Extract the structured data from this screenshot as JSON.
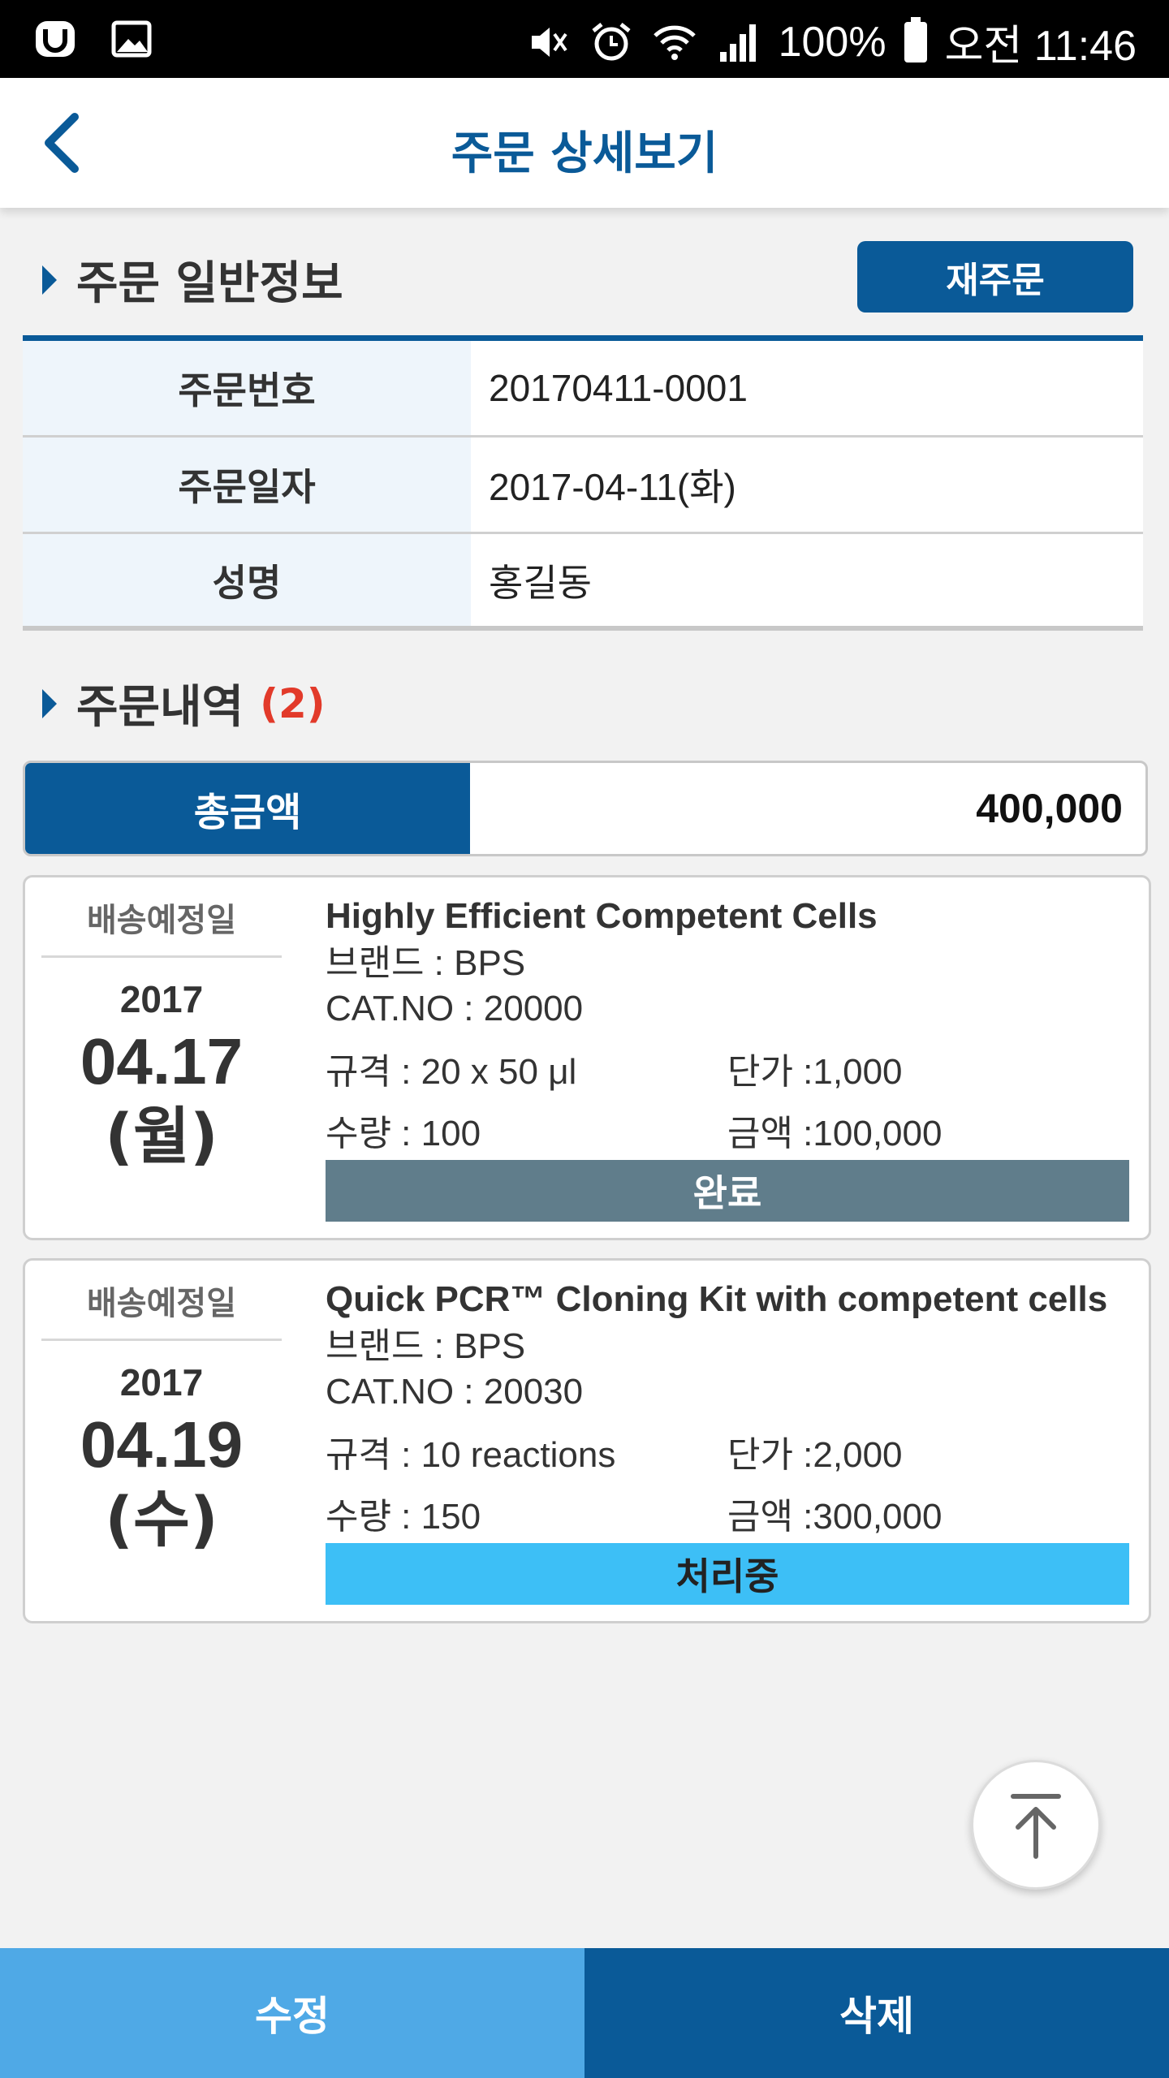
{
  "status_bar": {
    "battery": "100%",
    "time": "오전 11:46",
    "icons": [
      "u-plus-icon",
      "image-icon",
      "mute-icon",
      "alarm-icon",
      "wifi-icon",
      "signal-icon",
      "battery-icon"
    ]
  },
  "header": {
    "title": "주문 상세보기",
    "back_icon": "chevron-left-icon"
  },
  "general_info": {
    "title": "주문 일반정보",
    "reorder_label": "재주문",
    "rows": [
      {
        "label": "주문번호",
        "value": "20170411-0001"
      },
      {
        "label": "주문일자",
        "value": "2017-04-11(화)"
      },
      {
        "label": "성명",
        "value": "홍길동"
      }
    ]
  },
  "order_list": {
    "title": "주문내역",
    "count": "(2)",
    "total_label": "총금액",
    "total_value": "400,000",
    "items": [
      {
        "date_label": "배송예정일",
        "year": "2017",
        "month_day": "04.17",
        "weekday": "(월)",
        "name": "Highly Efficient Competent Cells",
        "brand": "브랜드 : BPS",
        "cat_no": "CAT.NO : 20000",
        "spec": "규격 : 20 x 50 μl",
        "unit_price": "단가 :1,000",
        "quantity": "수량 : 100",
        "amount": "금액 :100,000",
        "status": "완료"
      },
      {
        "date_label": "배송예정일",
        "year": "2017",
        "month_day": "04.19",
        "weekday": "(수)",
        "name": "Quick PCR™ Cloning Kit with competent cells",
        "brand": "브랜드 : BPS",
        "cat_no": "CAT.NO : 20030",
        "spec": "규격 : 10 reactions",
        "unit_price": "단가 :2,000",
        "quantity": "수량 : 150",
        "amount": "금액 :300,000",
        "status": "처리중"
      }
    ]
  },
  "scroll_top_icon": "arrow-up-to-top-icon",
  "bottom_bar": {
    "edit_label": "수정",
    "delete_label": "삭제"
  },
  "colors": {
    "primary": "#0a5a98",
    "light_primary": "#4fa9e6",
    "status_done": "#607d8b",
    "status_processing": "#3dbff6",
    "count_red": "#e23a2a"
  }
}
